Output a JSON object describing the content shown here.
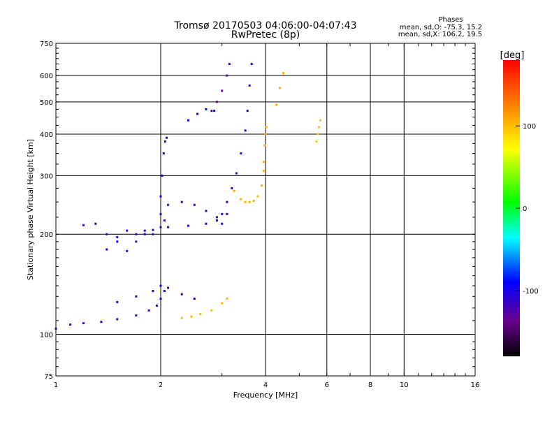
{
  "chart_data": {
    "type": "scatter",
    "title": "Tromsø 20170503 04:06:00-04:07:43",
    "subtitle": "RwPretec (8p)",
    "xlabel": "Frequency [MHz]",
    "ylabel": "Stationary phase Virtual Height [km]",
    "x_scale": "log",
    "y_scale": "log",
    "xlim": [
      1,
      16
    ],
    "ylim": [
      75,
      750
    ],
    "x_ticks": [
      1,
      2,
      4,
      6,
      8,
      10,
      16
    ],
    "y_ticks": [
      75,
      100,
      200,
      300,
      400,
      500,
      600,
      750
    ],
    "x_grid": [
      2,
      4,
      6,
      8,
      10
    ],
    "y_grid": [
      100,
      200,
      300,
      400,
      500,
      600
    ],
    "phases": {
      "title": "Phases",
      "line_o": "mean, sd,O: -75.3, 15.2",
      "line_x": "mean, sd,X: 106.2, 19.5"
    },
    "colorbar": {
      "label": "[deg]",
      "range": [
        -180,
        180
      ],
      "ticks": [
        100,
        0,
        -100
      ]
    },
    "series": [
      {
        "traces": [
          {
            "x": [
              1.0,
              1.1,
              1.2,
              1.35,
              1.5,
              1.7,
              1.85,
              1.95,
              2.0,
              2.05
            ],
            "y": [
              104,
              107,
              108,
              109,
              111,
              114,
              118,
              122,
              128,
              135
            ],
            "p": -110
          },
          {
            "x": [
              1.2,
              1.3,
              1.4,
              1.5,
              1.6,
              1.7,
              1.8,
              1.9,
              2.0,
              2.05
            ],
            "y": [
              213,
              215,
              200,
              196,
              205,
              190,
              200,
              206,
              210,
              220
            ],
            "p": -115
          },
          {
            "x": [
              1.4,
              1.5,
              1.6,
              1.7,
              1.8,
              1.9
            ],
            "y": [
              180,
              190,
              178,
              200,
              205,
              200
            ],
            "p": -108
          },
          {
            "x": [
              2.0,
              2.1,
              2.3,
              2.5,
              2.7,
              2.9,
              3.0,
              3.1
            ],
            "y": [
              230,
              245,
              250,
              245,
              235,
              225,
              215,
              230
            ],
            "p": -112
          },
          {
            "x": [
              2.0,
              2.02,
              2.04,
              2.06,
              2.08
            ],
            "y": [
              260,
              300,
              350,
              380,
              390
            ],
            "p": -105
          },
          {
            "x": [
              2.1,
              2.4,
              2.7,
              2.9,
              3.0,
              3.1,
              3.2,
              3.3,
              3.4,
              3.5,
              3.55,
              3.6,
              3.65
            ],
            "y": [
              210,
              212,
              215,
              220,
              230,
              250,
              275,
              305,
              350,
              410,
              470,
              560,
              650
            ],
            "p": -112
          },
          {
            "x": [
              2.4,
              2.55,
              2.7,
              2.85
            ],
            "y": [
              440,
              460,
              475,
              470
            ],
            "p": -95
          },
          {
            "x": [
              2.8,
              2.9,
              3.0,
              3.1,
              3.15
            ],
            "y": [
              470,
              500,
              540,
              600,
              650
            ],
            "p": -128
          },
          {
            "x": [
              3.25,
              3.4,
              3.5,
              3.6,
              3.7,
              3.8,
              3.9,
              3.95
            ],
            "y": [
              270,
              255,
              250,
              250,
              252,
              260,
              280,
              310
            ],
            "p": 105
          },
          {
            "x": [
              3.95,
              3.98,
              4.0,
              4.02
            ],
            "y": [
              330,
              370,
              400,
              420
            ],
            "p": 108
          },
          {
            "x": [
              4.3,
              4.4,
              4.5
            ],
            "y": [
              490,
              550,
              610
            ],
            "p": 110
          },
          {
            "x": [
              2.3,
              2.45,
              2.6,
              2.8,
              3.0,
              3.1
            ],
            "y": [
              112,
              113,
              115,
              118,
              124,
              128
            ],
            "p": 103
          },
          {
            "x": [
              1.5,
              1.7,
              1.9,
              2.0,
              2.1,
              2.3,
              2.5
            ],
            "y": [
              125,
              130,
              135,
              140,
              138,
              132,
              128
            ],
            "p": -105
          },
          {
            "x": [
              5.6,
              5.65,
              5.7,
              5.75
            ],
            "y": [
              380,
              400,
              420,
              440
            ],
            "p": 95
          }
        ]
      }
    ]
  }
}
